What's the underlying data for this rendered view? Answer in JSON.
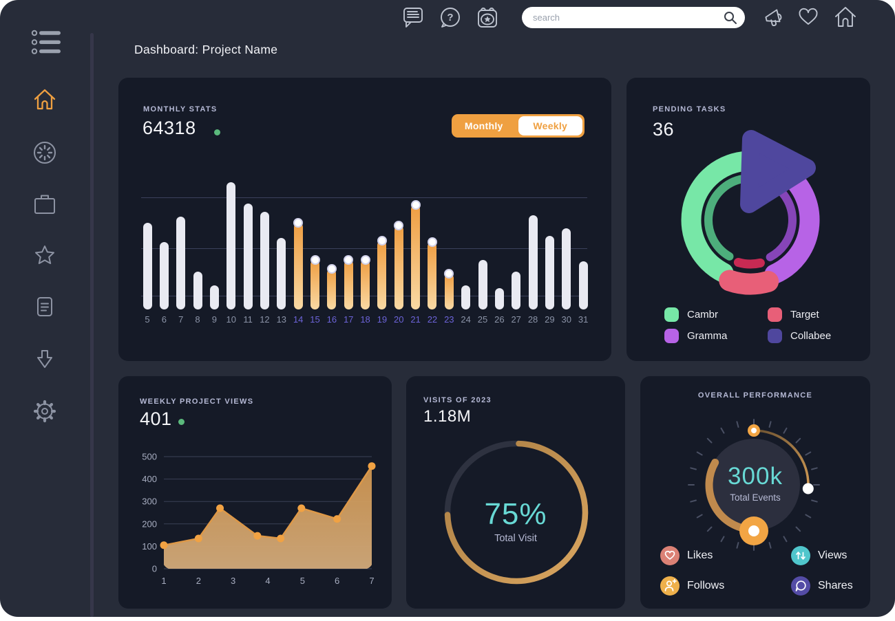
{
  "app": {
    "title": "Dashboard: Project Name"
  },
  "topbar": {
    "search": {
      "placeholder": "search"
    },
    "icons": [
      "chat-icon",
      "help-icon",
      "calendar-event-icon",
      "megaphone-icon",
      "heart-icon",
      "home-icon"
    ]
  },
  "sidebar": {
    "items": [
      "menu",
      "home",
      "timer",
      "projects",
      "favorites",
      "notes",
      "downloads",
      "settings"
    ],
    "active_item": "home",
    "accent_color": "#efa041"
  },
  "cards": {
    "monthly_stats": {
      "title": "MONTHLY STATS",
      "value": "64318",
      "toggle_monthly": "Monthly",
      "toggle_weekly": "Weekly",
      "active_toggle": "Monthly"
    },
    "pending_tasks": {
      "title": "PENDING TASKS",
      "value": "36",
      "legend": [
        {
          "label": "Cambr",
          "color": "#77e7a7"
        },
        {
          "label": "Target",
          "color": "#e85f78"
        },
        {
          "label": "Gramma",
          "color": "#b763e6"
        },
        {
          "label": "Collabee",
          "color": "#4f479e"
        }
      ]
    },
    "weekly_views": {
      "title": "WEEKLY PROJECT VIEWS",
      "value": "401"
    },
    "visits": {
      "title": "VISITS OF 2023",
      "value": "1.18M",
      "percent": "75%",
      "sublabel": "Total Visit"
    },
    "performance": {
      "title": "OVERALL PERFORMANCE",
      "value": "300k",
      "sublabel": "Total Events",
      "legend": [
        {
          "label": "Likes",
          "color": "#db8175",
          "icon": "heart-icon"
        },
        {
          "label": "Views",
          "color": "#50c6cc",
          "icon": "arrows-up-down-icon"
        },
        {
          "label": "Follows",
          "color": "#eeb04b",
          "icon": "person-add-icon"
        },
        {
          "label": "Shares",
          "color": "#544ca6",
          "icon": "chat-bubble-icon"
        }
      ]
    }
  },
  "chart_data": [
    {
      "type": "bar",
      "title": "Monthly Stats",
      "categories": [
        5,
        6,
        7,
        8,
        9,
        10,
        11,
        12,
        13,
        14,
        15,
        16,
        17,
        18,
        19,
        20,
        21,
        22,
        23,
        24,
        25,
        26,
        27,
        28,
        29,
        30,
        31
      ],
      "values": [
        68,
        53,
        73,
        30,
        19,
        100,
        83,
        77,
        56,
        68,
        39,
        32,
        39,
        39,
        54,
        66,
        82,
        53,
        28,
        19,
        39,
        17,
        30,
        74,
        58,
        64,
        38
      ],
      "ylim": [
        0,
        100
      ],
      "gridline_values": [
        11,
        48,
        88
      ],
      "highlight_range": [
        14,
        23
      ],
      "bar_color": "#e9eaf2",
      "highlight_gradient": [
        "#ef9e42",
        "#f9d9a4"
      ],
      "x_label_color": "#8b93a7",
      "highlight_label_color": "#6c63d8"
    },
    {
      "type": "pie",
      "title": "Pending Tasks",
      "total": 36,
      "segments": [
        {
          "label": "Cambr",
          "pct": 41,
          "color": "#77e7a7",
          "inner_color": "#57c98c",
          "arc": [
            207,
            353
          ],
          "inner_arc": [
            210,
            350
          ],
          "r_out": 86,
          "w_out": 29,
          "r_in": 61,
          "w_in": 12
        },
        {
          "label": "Gramma",
          "pct": 33,
          "color": "#b763e6",
          "inner_color": "#9a4ed2",
          "arc": [
            33,
            156
          ],
          "inner_arc": [
            36,
            152
          ],
          "r_out": 86,
          "w_out": 29,
          "r_in": 61,
          "w_in": 12
        },
        {
          "label": "Target",
          "pct": 10,
          "color": "#e85f78",
          "inner_color": "#e62e5c",
          "arc": [
            164,
            199
          ],
          "inner_arc": [
            167,
            196
          ],
          "r_out": 93,
          "w_out": 31,
          "r_in": 64,
          "w_in": 13
        },
        {
          "label": "Collabee",
          "pct": 16,
          "color": "#4f479e",
          "shape": "exploded-triangle"
        }
      ],
      "legend_position": "bottom"
    },
    {
      "type": "area",
      "title": "Weekly Project Views",
      "x": [
        1,
        2,
        2.62,
        3.7,
        4.37,
        4.97,
        6,
        7
      ],
      "y": [
        105,
        135,
        270,
        147,
        135,
        270,
        222,
        458
      ],
      "xticks": [
        1,
        2,
        3,
        4,
        5,
        6,
        7
      ],
      "yticks": [
        0,
        100,
        200,
        300,
        400,
        500
      ],
      "ylim": [
        0,
        500
      ],
      "line_color": "#dd9848",
      "marker_color": "#f1a243",
      "fill_gradient": [
        "#d29750",
        "#d6ad7c"
      ],
      "grid": true
    },
    {
      "type": "donut-progress",
      "title": "Visits of 2023",
      "percent": 75,
      "center_label": "75%",
      "sub_label": "Total Visit",
      "progress_gradient": [
        "#a97d43",
        "#daa660"
      ],
      "track_color": "#2e3240",
      "text_color": "#68d9d5"
    },
    {
      "type": "gauge",
      "title": "Overall Performance",
      "center_value": "300k",
      "sub_label": "Total Events",
      "arc_color": "#c08a4d",
      "accent_color": "#f2a544",
      "text_color": "#68d9d5"
    }
  ]
}
